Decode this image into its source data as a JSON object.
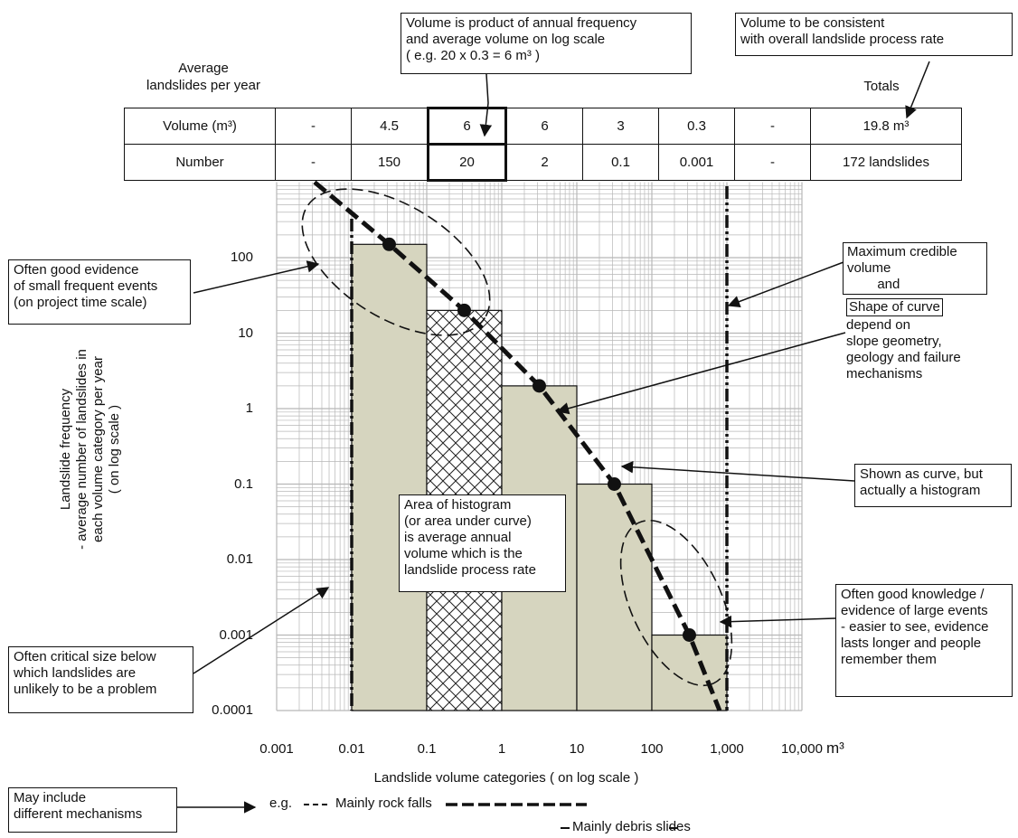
{
  "header": {
    "row_title": "Average\nlandslides per year",
    "totals_title": "Totals"
  },
  "table": {
    "rows": [
      {
        "label": "Volume (m³)",
        "cells": [
          "-",
          "4.5",
          "6",
          "6",
          "3",
          "0.3",
          "-"
        ],
        "total": "19.8 m³"
      },
      {
        "label": "Number",
        "cells": [
          "-",
          "150",
          "20",
          "2",
          "0.1",
          "0.001",
          "-"
        ],
        "total": "172 landslides"
      }
    ]
  },
  "callouts": {
    "volume_product": "Volume is product of annual frequency\nand average volume on log scale\n( e.g. 20 x 0.3 = 6 m³ )",
    "volume_consistent": "Volume to be consistent\nwith overall landslide process rate",
    "small_events": "Often good evidence\nof small frequent events\n(on project time scale)",
    "max_credible_top": "Maximum credible\nvolume\n        and",
    "shape_of_curve": "Shape of curve",
    "depend_on": "depend on\nslope geometry,\ngeology and failure\nmechanisms",
    "shown_as_curve": "Shown as curve, but\nactually a histogram",
    "area_of_histogram": "Area of histogram\n(or area under curve)\nis average annual\nvolume which is the\nlandslide process rate",
    "large_events": "Often good knowledge /\nevidence of large events\n- easier to see, evidence\nlasts longer and people\nremember them",
    "critical_size": "Often critical size below\nwhich landslides are\nunlikely to be a problem",
    "mechanisms": "May include\ndifferent mechanisms"
  },
  "legend": {
    "eg": "e.g.",
    "rock_falls": "Mainly rock falls",
    "debris_slides": "Mainly debris slides"
  },
  "colors": {
    "bar_fill": "#d6d5bf",
    "grid": "#b7b7b7",
    "ink": "#111111"
  },
  "chart_data": {
    "type": "bar",
    "title": "",
    "xlabel": "Landslide volume categories ( on log scale )",
    "x_unit": "m³",
    "ylabel": "Landslide frequency\n- average number of landslides in\neach volume category per year\n( on log scale )",
    "x_scale": "log",
    "y_scale": "log",
    "xlim": [
      0.001,
      10000
    ],
    "ylim": [
      0.0001,
      1000
    ],
    "x_ticks": [
      "0.001",
      "0.01",
      "0.1",
      "1",
      "10",
      "100",
      "1,000",
      "10,000"
    ],
    "y_ticks": [
      "0.0001",
      "0.001",
      "0.01",
      "0.1",
      "1",
      "10",
      "100"
    ],
    "grid": true,
    "bins": [
      {
        "x_min": 0.01,
        "x_max": 0.1,
        "value": 150,
        "hatched": false
      },
      {
        "x_min": 0.1,
        "x_max": 1,
        "value": 20,
        "hatched": true
      },
      {
        "x_min": 1,
        "x_max": 10,
        "value": 2,
        "hatched": false
      },
      {
        "x_min": 10,
        "x_max": 100,
        "value": 0.1,
        "hatched": false
      },
      {
        "x_min": 100,
        "x_max": 1000,
        "value": 0.001,
        "hatched": false
      }
    ],
    "curve_points": [
      {
        "x": 0.0032,
        "y": 1000
      },
      {
        "x": 0.0316,
        "y": 150
      },
      {
        "x": 0.316,
        "y": 20
      },
      {
        "x": 3.16,
        "y": 2
      },
      {
        "x": 31.6,
        "y": 0.1
      },
      {
        "x": 316,
        "y": 0.001
      },
      {
        "x": 800,
        "y": 0.0001
      }
    ],
    "lower_limit_x": 0.01,
    "upper_limit_x": 1000
  }
}
